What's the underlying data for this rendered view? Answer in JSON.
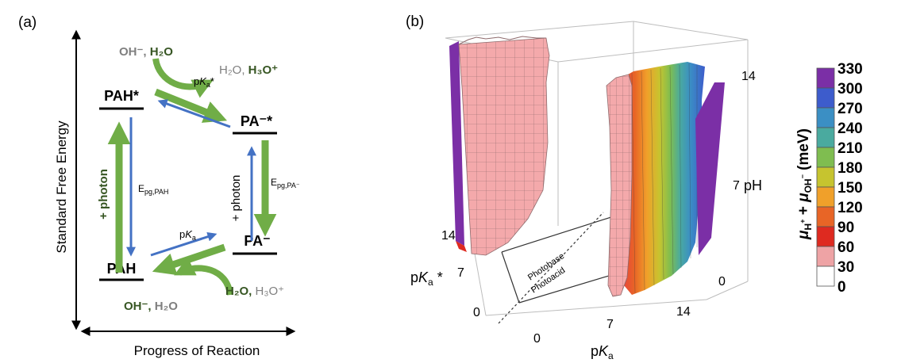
{
  "panel_a": {
    "label": "(a)",
    "y_axis_label": "Standard Free Energy",
    "x_axis_label": "Progress of Reaction",
    "states": {
      "pah_star": "PAH*",
      "pa_minus_star": "PA⁻*",
      "pah": "PAH",
      "pa_minus": "PA⁻"
    },
    "excited_top": {
      "oh": "OH⁻, ",
      "h2o": "H₂O"
    },
    "excited_right": {
      "h2o": "H₂O, ",
      "h3o": "H₃O⁺"
    },
    "pka_star": {
      "p": "p",
      "k": "K",
      "a": "a",
      "star": "*"
    },
    "ground_left": {
      "oh": "OH⁻, ",
      "h2o": "H₂O"
    },
    "ground_right": {
      "h2o": "H₂O, ",
      "h3o": "H₃O⁺"
    },
    "pka": {
      "p": "p",
      "k": "K",
      "a": "a"
    },
    "left_vertical": {
      "photon": "+ photon",
      "e": "E",
      "sub": "pg,PAH"
    },
    "right_vertical": {
      "photon": "+ photon",
      "e": "E",
      "sub": "pg,PA⁻"
    },
    "colors": {
      "green": "#70ad47",
      "blue": "#4472c4",
      "dark_green": "#375623",
      "gray": "#7f7f7f"
    }
  },
  "panel_b": {
    "label": "(b)",
    "photobase_label": "Photobase",
    "photoacid_label": "Photoacid",
    "pka_star_axis": {
      "p": "p",
      "k": "K",
      "a": "a",
      "star": " *"
    },
    "pka_axis": {
      "p": "p",
      "k": "K",
      "a": "a"
    },
    "ph_axis_label": "pH",
    "pka_star_ticks": [
      "14",
      "7",
      "0"
    ],
    "pka_ticks": [
      "0",
      "7",
      "14"
    ],
    "ph_ticks": [
      "14",
      "7",
      "0"
    ],
    "colorbar": {
      "levels": [
        "330",
        "300",
        "270",
        "240",
        "210",
        "180",
        "150",
        "120",
        "90",
        "60",
        "30",
        "0"
      ],
      "colors": [
        "#7b2fa6",
        "#3d5ccc",
        "#3b8fc4",
        "#4aaa9f",
        "#7fbd50",
        "#c6c42f",
        "#f0a02a",
        "#e86526",
        "#de2a20",
        "#eea3a5",
        "#ffffff"
      ],
      "title": {
        "mu1": "μ",
        "h": "H",
        "hsup": "+",
        "plus": " + ",
        "mu2": "μ",
        "oh": "OH",
        "ohsup": "−",
        "unit": " (meV)"
      }
    }
  }
}
